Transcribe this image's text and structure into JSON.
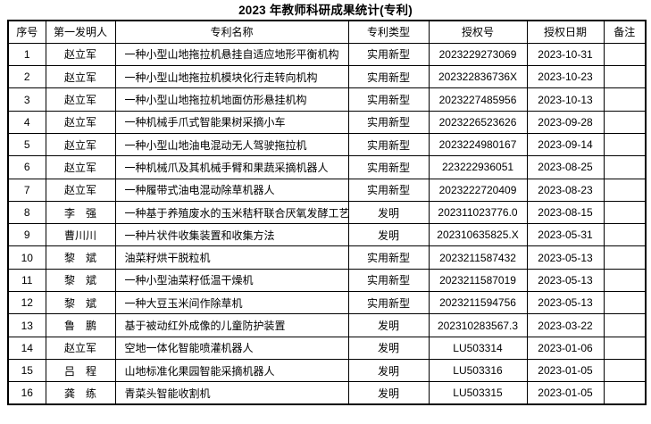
{
  "title": "2023 年教师科研成果统计(专利)",
  "table": {
    "headers": [
      "序号",
      "第一发明人",
      "专利名称",
      "专利类型",
      "授权号",
      "授权日期",
      "备注"
    ],
    "rows": [
      {
        "no": "1",
        "inventor": "赵立军",
        "name": "一种小型山地拖拉机悬挂自适应地形平衡机构",
        "type": "实用新型",
        "number": "2023229273069",
        "date": "2023-10-31",
        "note": ""
      },
      {
        "no": "2",
        "inventor": "赵立军",
        "name": "一种小型山地拖拉机模块化行走转向机构",
        "type": "实用新型",
        "number": "202322836736X",
        "date": "2023-10-23",
        "note": ""
      },
      {
        "no": "3",
        "inventor": "赵立军",
        "name": "一种小型山地拖拉机地面仿形悬挂机构",
        "type": "实用新型",
        "number": "2023227485956",
        "date": "2023-10-13",
        "note": ""
      },
      {
        "no": "4",
        "inventor": "赵立军",
        "name": "一种机械手爪式智能果树采摘小车",
        "type": "实用新型",
        "number": "2023226523626",
        "date": "2023-09-28",
        "note": ""
      },
      {
        "no": "5",
        "inventor": "赵立军",
        "name": "一种小型山地油电混动无人驾驶拖拉机",
        "type": "实用新型",
        "number": "2023224980167",
        "date": "2023-09-14",
        "note": ""
      },
      {
        "no": "6",
        "inventor": "赵立军",
        "name": "一种机械爪及其机械手臂和果蔬采摘机器人",
        "type": "实用新型",
        "number": "223222936051",
        "date": "2023-08-25",
        "note": ""
      },
      {
        "no": "7",
        "inventor": "赵立军",
        "name": "一种履带式油电混动除草机器人",
        "type": "实用新型",
        "number": "2023222720409",
        "date": "2023-08-23",
        "note": ""
      },
      {
        "no": "8",
        "inventor": "李　强",
        "name": "一种基于养殖废水的玉米秸秆联合厌氧发酵工艺",
        "type": "发明",
        "number": "202311023776.0",
        "date": "2023-08-15",
        "note": ""
      },
      {
        "no": "9",
        "inventor": "曹川川",
        "name": "一种片状件收集装置和收集方法",
        "type": "发明",
        "number": "202310635825.X",
        "date": "2023-05-31",
        "note": ""
      },
      {
        "no": "10",
        "inventor": "黎　斌",
        "name": "油菜籽烘干脱粒机",
        "type": "实用新型",
        "number": "2023211587432",
        "date": "2023-05-13",
        "note": ""
      },
      {
        "no": "11",
        "inventor": "黎　斌",
        "name": "一种小型油菜籽低温干燥机",
        "type": "实用新型",
        "number": "2023211587019",
        "date": "2023-05-13",
        "note": ""
      },
      {
        "no": "12",
        "inventor": "黎　斌",
        "name": "一种大豆玉米间作除草机",
        "type": "实用新型",
        "number": "2023211594756",
        "date": "2023-05-13",
        "note": ""
      },
      {
        "no": "13",
        "inventor": "鲁　鹏",
        "name": "基于被动红外成像的儿童防护装置",
        "type": "发明",
        "number": "202310283567.3",
        "date": "2023-03-22",
        "note": ""
      },
      {
        "no": "14",
        "inventor": "赵立军",
        "name": "空地一体化智能喷灌机器人",
        "type": "发明",
        "number": "LU503314",
        "date": "2023-01-06",
        "note": ""
      },
      {
        "no": "15",
        "inventor": "吕　程",
        "name": "山地标准化果园智能采摘机器人",
        "type": "发明",
        "number": "LU503316",
        "date": "2023-01-05",
        "note": ""
      },
      {
        "no": "16",
        "inventor": "龚　练",
        "name": "青菜头智能收割机",
        "type": "发明",
        "number": "LU503315",
        "date": "2023-01-05",
        "note": ""
      }
    ]
  }
}
